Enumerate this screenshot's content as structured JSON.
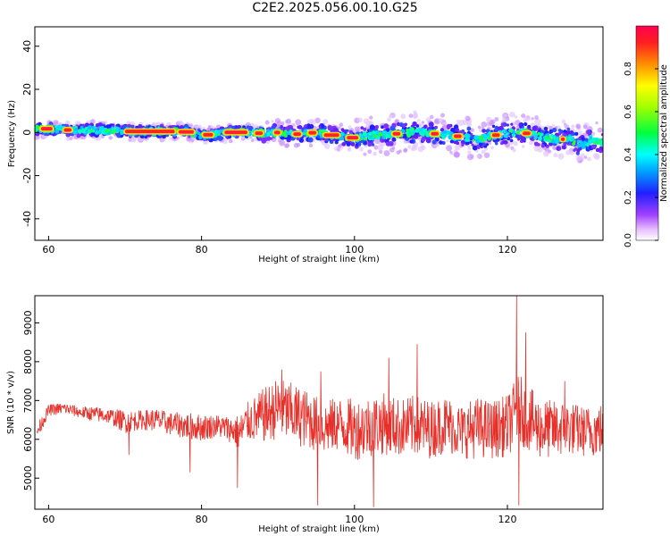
{
  "title": "C2E2.2025.056.00.10.G25",
  "chart_data": [
    {
      "type": "heatmap",
      "title": "C2E2.2025.056.00.10.G25",
      "xlabel": "Height of straight line (km)",
      "ylabel": "Frequency (Hz)",
      "xlim": [
        58.2,
        132.5
      ],
      "ylim": [
        -50,
        49
      ],
      "xticks": [
        60,
        80,
        100,
        120
      ],
      "yticks": [
        40,
        20,
        0,
        -20,
        -40
      ],
      "colorbar": {
        "label": "Normalized spectral amplitude",
        "range": [
          0.0,
          1.0
        ],
        "ticks": [
          "0.0",
          "0.2",
          "0.4",
          "0.6",
          "0.8"
        ],
        "colormap": "hsv-rainbow (white-magenta-blue-cyan-green-yellow-orange-red)"
      },
      "ridge": {
        "height_km": [
          58.5,
          60,
          62,
          64,
          66,
          68,
          70,
          72,
          74,
          76,
          78,
          80,
          82,
          84,
          86,
          88,
          90,
          92,
          94,
          96,
          98,
          100,
          102,
          104,
          106,
          108,
          110,
          112,
          114,
          116,
          118,
          120,
          122,
          124,
          126,
          127,
          128,
          129,
          130,
          131,
          132.5
        ],
        "frequency_hz": [
          1.5,
          1.8,
          1.2,
          1.0,
          1.3,
          0.8,
          0.5,
          0.4,
          0.5,
          0.4,
          0.3,
          -1.5,
          -0.5,
          0.0,
          0.2,
          -0.5,
          0.0,
          -1.0,
          0.0,
          -0.5,
          -2.0,
          -2.5,
          -1.5,
          -1.0,
          -0.5,
          0.5,
          -0.5,
          -1.0,
          -2.0,
          -3.0,
          -1.5,
          -0.5,
          0.0,
          -1.5,
          -3.0,
          -3.5,
          -2.0,
          -5.0,
          -6.0,
          -3.0,
          -5.0
        ],
        "peak_amplitude_note": "red (~0.9-1.0) along ridge, spread increases above ~100 km"
      }
    },
    {
      "type": "line",
      "xlabel": "Height of straight line (km)",
      "ylabel": "SNR (10 * v/v)",
      "xlim": [
        58.2,
        132.5
      ],
      "ylim": [
        4200,
        9700
      ],
      "xticks": [
        60,
        80,
        100,
        120
      ],
      "yticks": [
        5000,
        6000,
        7000,
        8000,
        9000
      ],
      "color": "#e8302a",
      "series": [
        {
          "x": [
            58.5,
            60,
            62,
            64,
            66,
            68,
            70,
            72,
            74,
            76,
            78,
            80,
            82,
            84,
            85,
            86,
            88,
            90,
            92,
            94,
            96,
            98,
            100,
            102,
            104,
            106,
            108,
            110,
            112,
            114,
            116,
            118,
            120,
            121.5,
            124,
            126,
            128,
            130,
            132.5
          ],
          "mean": [
            6200,
            6750,
            6800,
            6700,
            6650,
            6600,
            6450,
            6500,
            6500,
            6400,
            6350,
            6300,
            6350,
            6250,
            6150,
            6450,
            6600,
            6800,
            6650,
            6500,
            6300,
            6400,
            6250,
            6350,
            6400,
            6300,
            6350,
            6250,
            6400,
            6200,
            6300,
            6250,
            6350,
            6800,
            6300,
            6250,
            6300,
            6200,
            6250
          ],
          "spread": [
            200,
            150,
            150,
            150,
            200,
            200,
            300,
            250,
            300,
            300,
            350,
            350,
            300,
            350,
            500,
            500,
            700,
            800,
            800,
            750,
            700,
            700,
            800,
            800,
            800,
            750,
            800,
            750,
            750,
            700,
            800,
            750,
            800,
            900,
            800,
            750,
            700,
            650,
            700
          ],
          "spikes": [
            {
              "x": 70.5,
              "y": 5600
            },
            {
              "x": 78.5,
              "y": 5150
            },
            {
              "x": 84.7,
              "y": 4750
            },
            {
              "x": 90.5,
              "y": 7800
            },
            {
              "x": 95.2,
              "y": 4300
            },
            {
              "x": 95.6,
              "y": 7750
            },
            {
              "x": 102.5,
              "y": 4250
            },
            {
              "x": 104.5,
              "y": 8100
            },
            {
              "x": 108.2,
              "y": 8450
            },
            {
              "x": 121.2,
              "y": 9700
            },
            {
              "x": 121.5,
              "y": 4300
            },
            {
              "x": 122.4,
              "y": 8750
            },
            {
              "x": 127.5,
              "y": 7500
            }
          ]
        }
      ]
    }
  ]
}
